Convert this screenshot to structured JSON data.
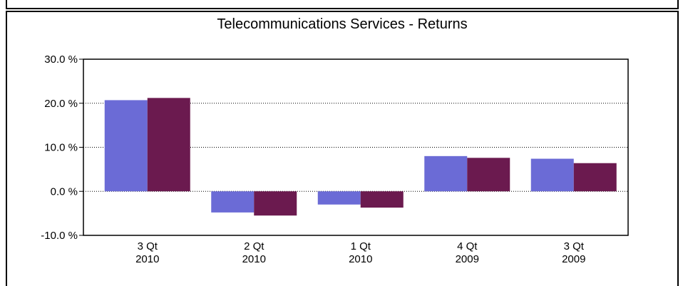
{
  "chart_data": {
    "type": "bar",
    "title": "Telecommunications Services  -  Returns",
    "categories": [
      "3 Qt\n2010",
      "2 Qt\n2010",
      "1 Qt\n2010",
      "4 Qt\n2009",
      "3 Qt\n2009"
    ],
    "series": [
      {
        "color": "#6b6bd6",
        "values": [
          20.7,
          -4.8,
          -3.0,
          8.0,
          7.4
        ]
      },
      {
        "color": "#6b1a4f",
        "values": [
          21.2,
          -5.5,
          -3.7,
          7.6,
          6.4
        ]
      }
    ],
    "ylim": [
      -10,
      30
    ],
    "yticks": [
      {
        "value": -10,
        "label": "-10.0 %"
      },
      {
        "value": 0,
        "label": "0.0 %"
      },
      {
        "value": 10,
        "label": "10.0 %"
      },
      {
        "value": 20,
        "label": "20.0 %"
      },
      {
        "value": 30,
        "label": "30.0 %"
      }
    ],
    "grid": true
  }
}
